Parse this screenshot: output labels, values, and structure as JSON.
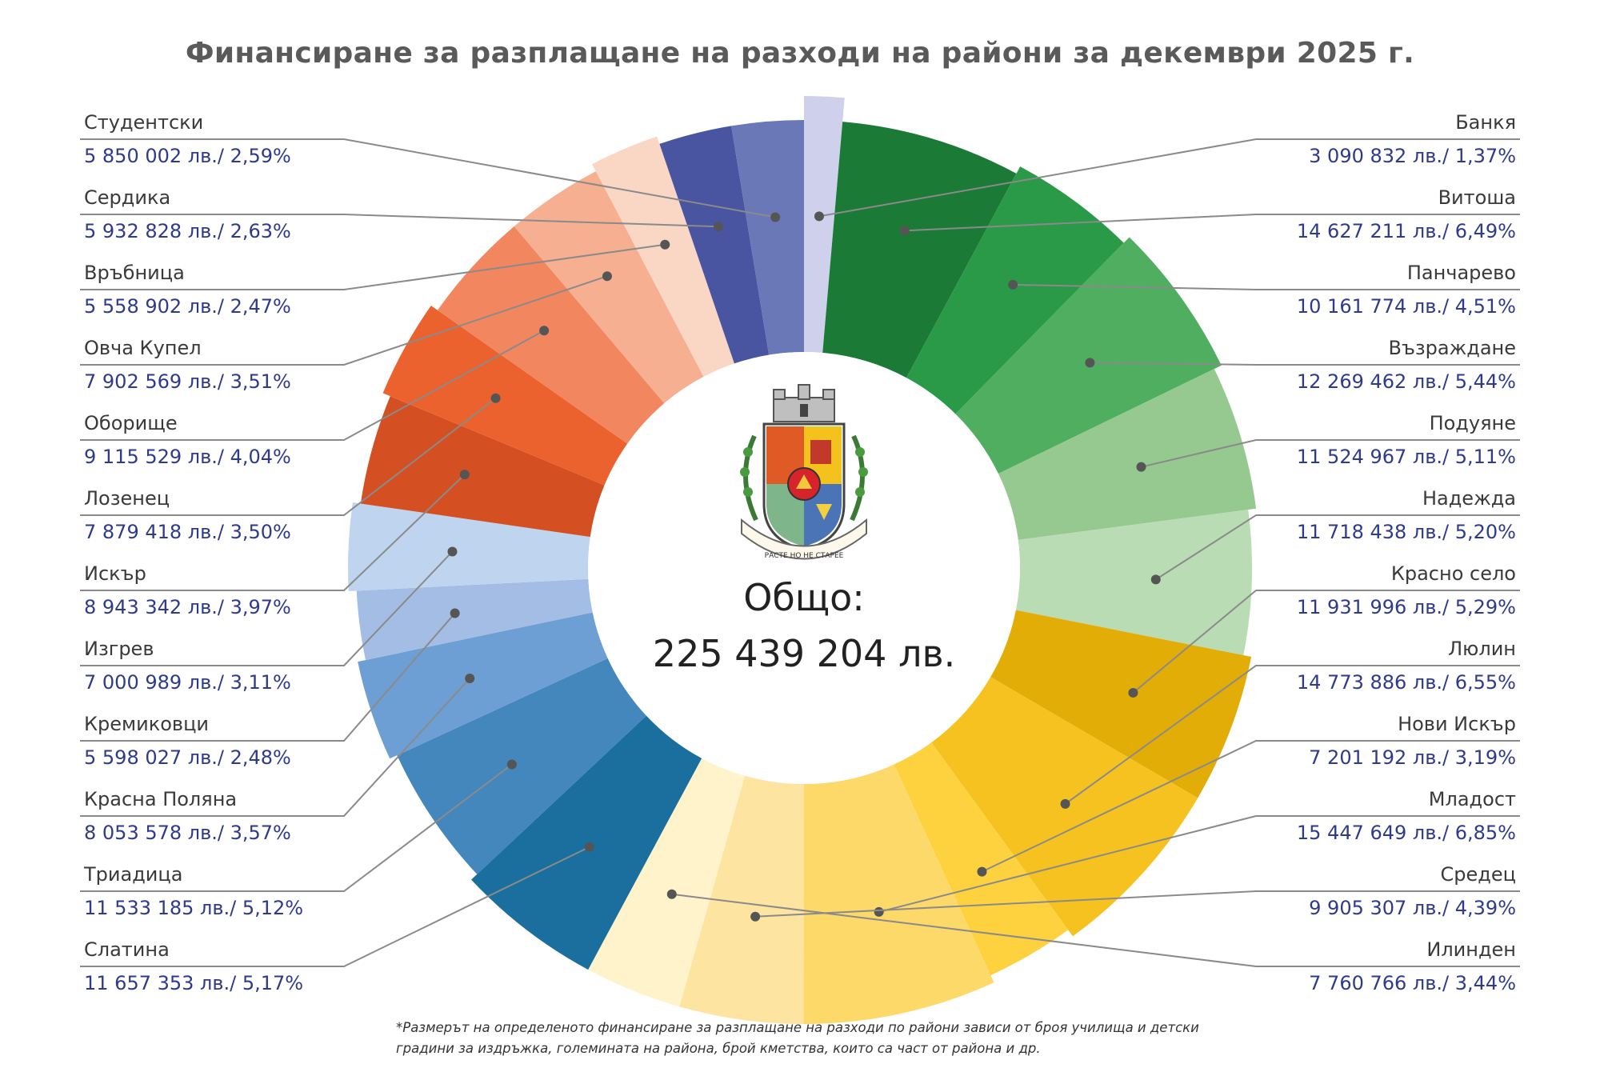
{
  "title": "Финансиране за разплащане на разходи на райони за декември 2025 г.",
  "total": {
    "label": "Общо:",
    "value": "225 439 204 лв."
  },
  "footnote": "*Размерът на определеното финансиране за разплащане на разходи по райони зависи от броя училища и детски градини за издръжка, големината на района, брой кметства, които са част от района и др.",
  "emblem": {
    "icon": "sofia-coat-of-arms-icon",
    "motto": "РАСТЕ НО НЕ СТАРЕЕ"
  },
  "chart_data": {
    "type": "pie",
    "style": "donut",
    "title": "Финансиране за разплащане на разходи на райони за декември 2025 г.",
    "units": "лв.",
    "legend": "labels-around-ring",
    "districts": [
      {
        "name": "Банкя",
        "value": 3090832,
        "label": "3 090 832 лв./ 1,37%",
        "color": "#cfd1ec",
        "side": "right"
      },
      {
        "name": "Витоша",
        "value": 14627211,
        "label": "14 627 211 лв./ 6,49%",
        "color": "#1b7a36",
        "side": "right"
      },
      {
        "name": "Панчарево",
        "value": 10161774,
        "label": "10 161 774 лв./ 4,51%",
        "color": "#2a9a48",
        "side": "right"
      },
      {
        "name": "Възраждане",
        "value": 12269462,
        "label": "12 269 462 лв./ 5,44%",
        "color": "#4fae60",
        "side": "right"
      },
      {
        "name": "Подуяне",
        "value": 11524967,
        "label": "11 524 967 лв./ 5,11%",
        "color": "#95c98f",
        "side": "right"
      },
      {
        "name": "Надежда",
        "value": 11718438,
        "label": "11 718 438 лв./ 5,20%",
        "color": "#b9dcb4",
        "side": "right"
      },
      {
        "name": "Красно село",
        "value": 11931996,
        "label": "11 931 996 лв./ 5,29%",
        "color": "#e2ad06",
        "side": "right"
      },
      {
        "name": "Люлин",
        "value": 14773886,
        "label": "14 773 886 лв./ 6,55%",
        "color": "#f6c21f",
        "side": "right"
      },
      {
        "name": "Нови Искър",
        "value": 7201192,
        "label": "7 201 192 лв./ 3,19%",
        "color": "#fed23f",
        "side": "right"
      },
      {
        "name": "Младост",
        "value": 15447649,
        "label": "15 447 649 лв./ 6,85%",
        "color": "#fdd96a",
        "side": "right"
      },
      {
        "name": "Средец",
        "value": 9905307,
        "label": "9 905 307 лв./ 4,39%",
        "color": "#fde4a0",
        "side": "right"
      },
      {
        "name": "Илинден",
        "value": 7760766,
        "label": "7 760 766 лв./ 3,44%",
        "color": "#fff3cb",
        "side": "right"
      },
      {
        "name": "Слатина",
        "value": 11657353,
        "label": "11 657 353 лв./ 5,17%",
        "color": "#1a6f9e",
        "side": "left"
      },
      {
        "name": "Триадица",
        "value": 11533185,
        "label": "11 533 185 лв./ 5,12%",
        "color": "#4487bd",
        "side": "left"
      },
      {
        "name": "Красна Поляна",
        "value": 8053578,
        "label": "8 053 578 лв./ 3,57%",
        "color": "#6e9fd4",
        "side": "left"
      },
      {
        "name": "Кремиковци",
        "value": 5598027,
        "label": "5 598 027 лв./ 2,48%",
        "color": "#a4bde4",
        "side": "left"
      },
      {
        "name": "Изгрев",
        "value": 7000989,
        "label": "7 000 989 лв./ 3,11%",
        "color": "#bfd5ef",
        "side": "left"
      },
      {
        "name": "Искър",
        "value": 8943342,
        "label": "8 943 342 лв./ 3,97%",
        "color": "#d44f22",
        "side": "left"
      },
      {
        "name": "Лозенец",
        "value": 7879418,
        "label": "7 879 418 лв./ 3,50%",
        "color": "#ec622f",
        "side": "left"
      },
      {
        "name": "Оборище",
        "value": 9115529,
        "label": "9 115 529 лв./ 4,04%",
        "color": "#f2865e",
        "side": "left"
      },
      {
        "name": "Овча Купел",
        "value": 7902569,
        "label": "7 902 569 лв./ 3,51%",
        "color": "#f6af91",
        "side": "left"
      },
      {
        "name": "Връбница",
        "value": 5558902,
        "label": "5 558 902 лв./ 2,47%",
        "color": "#fad6c4",
        "side": "left"
      },
      {
        "name": "Сердика",
        "value": 5932828,
        "label": "5 932 828 лв./ 2,63%",
        "color": "#4a55a2",
        "side": "left"
      },
      {
        "name": "Студентски",
        "value": 5850002,
        "label": "5 850 002 лв./ 2,59%",
        "color": "#6b78b8",
        "side": "left"
      }
    ],
    "ring_order": [
      "Банкя",
      "Витоша",
      "Панчарево",
      "Възраждане",
      "Подуяне",
      "Надежда",
      "Красно село",
      "Люлин",
      "Нови Искър",
      "Младост",
      "Средец",
      "Илинден",
      "Слатина",
      "Триадица",
      "Красна Поляна",
      "Кремиковци",
      "Изгрев",
      "Искър",
      "Лозенец",
      "Оборище",
      "Овча Купел",
      "Връбница",
      "Сердика",
      "Студентски"
    ],
    "extra_segment_color": "#9fa3d4"
  }
}
